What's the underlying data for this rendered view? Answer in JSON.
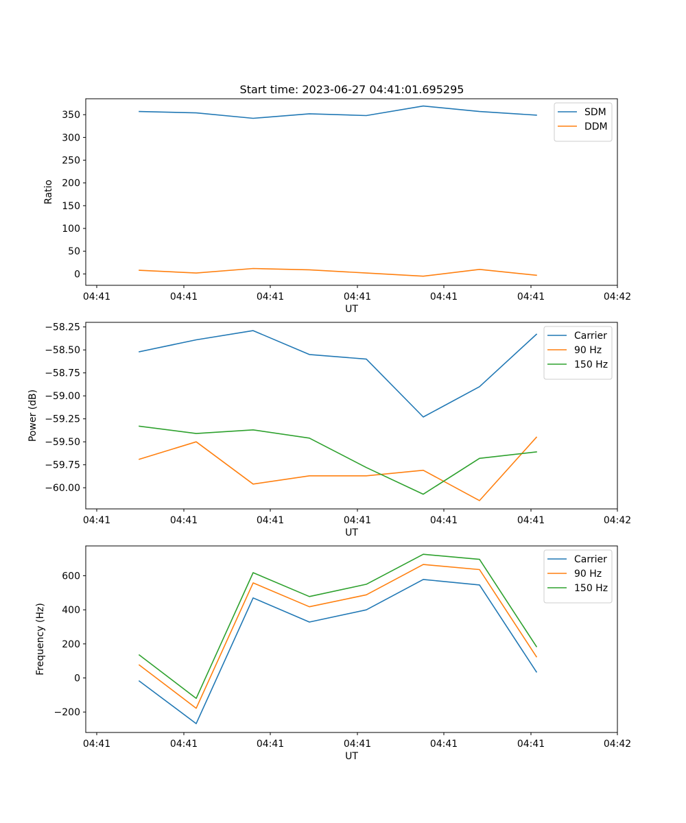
{
  "title": "Start time: 2023-06-27 04:41:01.695295",
  "chart_data": [
    {
      "type": "line",
      "xlabel": "UT",
      "ylabel": "Ratio",
      "x_tick_labels": [
        "04:41",
        "04:41",
        "04:41",
        "04:41",
        "04:41",
        "04:41",
        "04:42"
      ],
      "ylim": [
        -25,
        385
      ],
      "yticks": [
        "0",
        "50",
        "100",
        "150",
        "200",
        "250",
        "300",
        "350"
      ],
      "yticks_values": [
        0,
        50,
        100,
        150,
        200,
        250,
        300,
        350
      ],
      "legend_position": "top-right",
      "series": [
        {
          "name": "SDM",
          "color": "#1f77b4",
          "values": [
            357,
            354,
            342,
            352,
            348,
            369,
            357,
            349
          ]
        },
        {
          "name": "DDM",
          "color": "#ff7f0e",
          "values": [
            8,
            2,
            12,
            9,
            2,
            -5,
            10,
            -3
          ]
        }
      ]
    },
    {
      "type": "line",
      "xlabel": "UT",
      "ylabel": "Power (dB)",
      "x_tick_labels": [
        "04:41",
        "04:41",
        "04:41",
        "04:41",
        "04:41",
        "04:41",
        "04:42"
      ],
      "ylim": [
        -60.23,
        -58.2
      ],
      "yticks": [
        "−60.00",
        "−59.75",
        "−59.50",
        "−59.25",
        "−59.00",
        "−58.75",
        "−58.50",
        "−58.25"
      ],
      "yticks_values": [
        -60.0,
        -59.75,
        -59.5,
        -59.25,
        -59.0,
        -58.75,
        -58.5,
        -58.25
      ],
      "legend_position": "top-right",
      "series": [
        {
          "name": "Carrier",
          "color": "#1f77b4",
          "values": [
            -58.52,
            -58.39,
            -58.29,
            -58.55,
            -58.6,
            -59.23,
            -58.9,
            -58.33
          ]
        },
        {
          "name": "90 Hz",
          "color": "#ff7f0e",
          "values": [
            -59.69,
            -59.5,
            -59.96,
            -59.87,
            -59.87,
            -59.81,
            -60.14,
            -59.45
          ]
        },
        {
          "name": "150 Hz",
          "color": "#2ca02c",
          "values": [
            -59.33,
            -59.41,
            -59.37,
            -59.46,
            -59.78,
            -60.07,
            -59.68,
            -59.61
          ]
        }
      ]
    },
    {
      "type": "line",
      "xlabel": "UT",
      "ylabel": "Frequency (Hz)",
      "x_tick_labels": [
        "04:41",
        "04:41",
        "04:41",
        "04:41",
        "04:41",
        "04:41",
        "04:42"
      ],
      "ylim": [
        -320,
        775
      ],
      "yticks": [
        "−200",
        "0",
        "200",
        "400",
        "600"
      ],
      "yticks_values": [
        -200,
        0,
        200,
        400,
        600
      ],
      "legend_position": "top-right",
      "series": [
        {
          "name": "Carrier",
          "color": "#1f77b4",
          "values": [
            -18,
            -268,
            470,
            328,
            400,
            578,
            546,
            35
          ]
        },
        {
          "name": "90 Hz",
          "color": "#ff7f0e",
          "values": [
            76,
            -178,
            558,
            418,
            488,
            666,
            636,
            124
          ]
        },
        {
          "name": "150 Hz",
          "color": "#2ca02c",
          "values": [
            135,
            -120,
            618,
            478,
            550,
            726,
            696,
            184
          ]
        }
      ]
    }
  ]
}
